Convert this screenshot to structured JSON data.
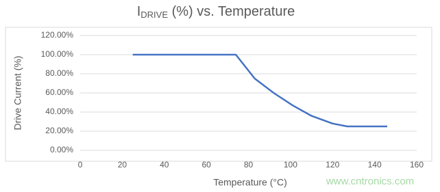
{
  "chart_data": {
    "type": "line",
    "title": {
      "main": "I",
      "subscript": "DRIVE",
      "rest": " (%) vs. Temperature"
    },
    "xlabel": "Temperature (°C)",
    "ylabel": "Drive Current (%)",
    "x": [
      25,
      74,
      83,
      92,
      101,
      110,
      120,
      127,
      146
    ],
    "series": [
      {
        "name": "Drive Current",
        "color": "#4472c4",
        "values": [
          100,
          100,
          75,
          60,
          47,
          36,
          28,
          25,
          25
        ]
      }
    ],
    "xlim": [
      0,
      160
    ],
    "xticks": [
      0,
      20,
      40,
      60,
      80,
      100,
      120,
      140,
      160
    ],
    "ylim": [
      0,
      120
    ],
    "yticks": [
      {
        "value": 0,
        "label": "0.00%"
      },
      {
        "value": 20,
        "label": "20.00%"
      },
      {
        "value": 40,
        "label": "40.00%"
      },
      {
        "value": 60,
        "label": "60.00%"
      },
      {
        "value": 80,
        "label": "80.00%"
      },
      {
        "value": 100,
        "label": "100.00%"
      },
      {
        "value": 120,
        "label": "120.00%"
      }
    ],
    "grid": true
  },
  "watermark": "www.cntronics.com"
}
